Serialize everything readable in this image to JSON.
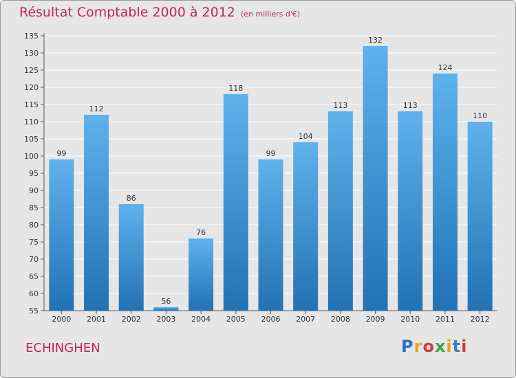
{
  "title": "Résultat Comptable 2000 à 2012",
  "unit": "(en milliers d'€)",
  "commune": "ECHINGHEN",
  "logo": {
    "text": "Proxiti",
    "letter_colors": [
      "#2f6fc0",
      "#e8a21b",
      "#d43a3a",
      "#3ea345",
      "#e8a21b",
      "#3a7ec8",
      "#d43a3a"
    ]
  },
  "colors": {
    "accent": "#c0245a",
    "bar_top": "#5fb2ec",
    "bar_bottom": "#2272b4",
    "background": "#e6e6e6"
  },
  "chart_data": {
    "type": "bar",
    "title": "Résultat Comptable 2000 à 2012",
    "subtitle": "(en milliers d'€)",
    "categories": [
      "2000",
      "2001",
      "2002",
      "2003",
      "2004",
      "2005",
      "2006",
      "2007",
      "2008",
      "2009",
      "2010",
      "2011",
      "2012"
    ],
    "values": [
      99,
      112,
      86,
      56,
      76,
      118,
      99,
      104,
      113,
      132,
      113,
      124,
      110
    ],
    "ylim": [
      55,
      135
    ],
    "yticks": [
      55,
      60,
      65,
      70,
      75,
      80,
      85,
      90,
      95,
      100,
      105,
      110,
      115,
      120,
      125,
      130,
      135
    ],
    "grid": true,
    "xlabel": "",
    "ylabel": ""
  }
}
